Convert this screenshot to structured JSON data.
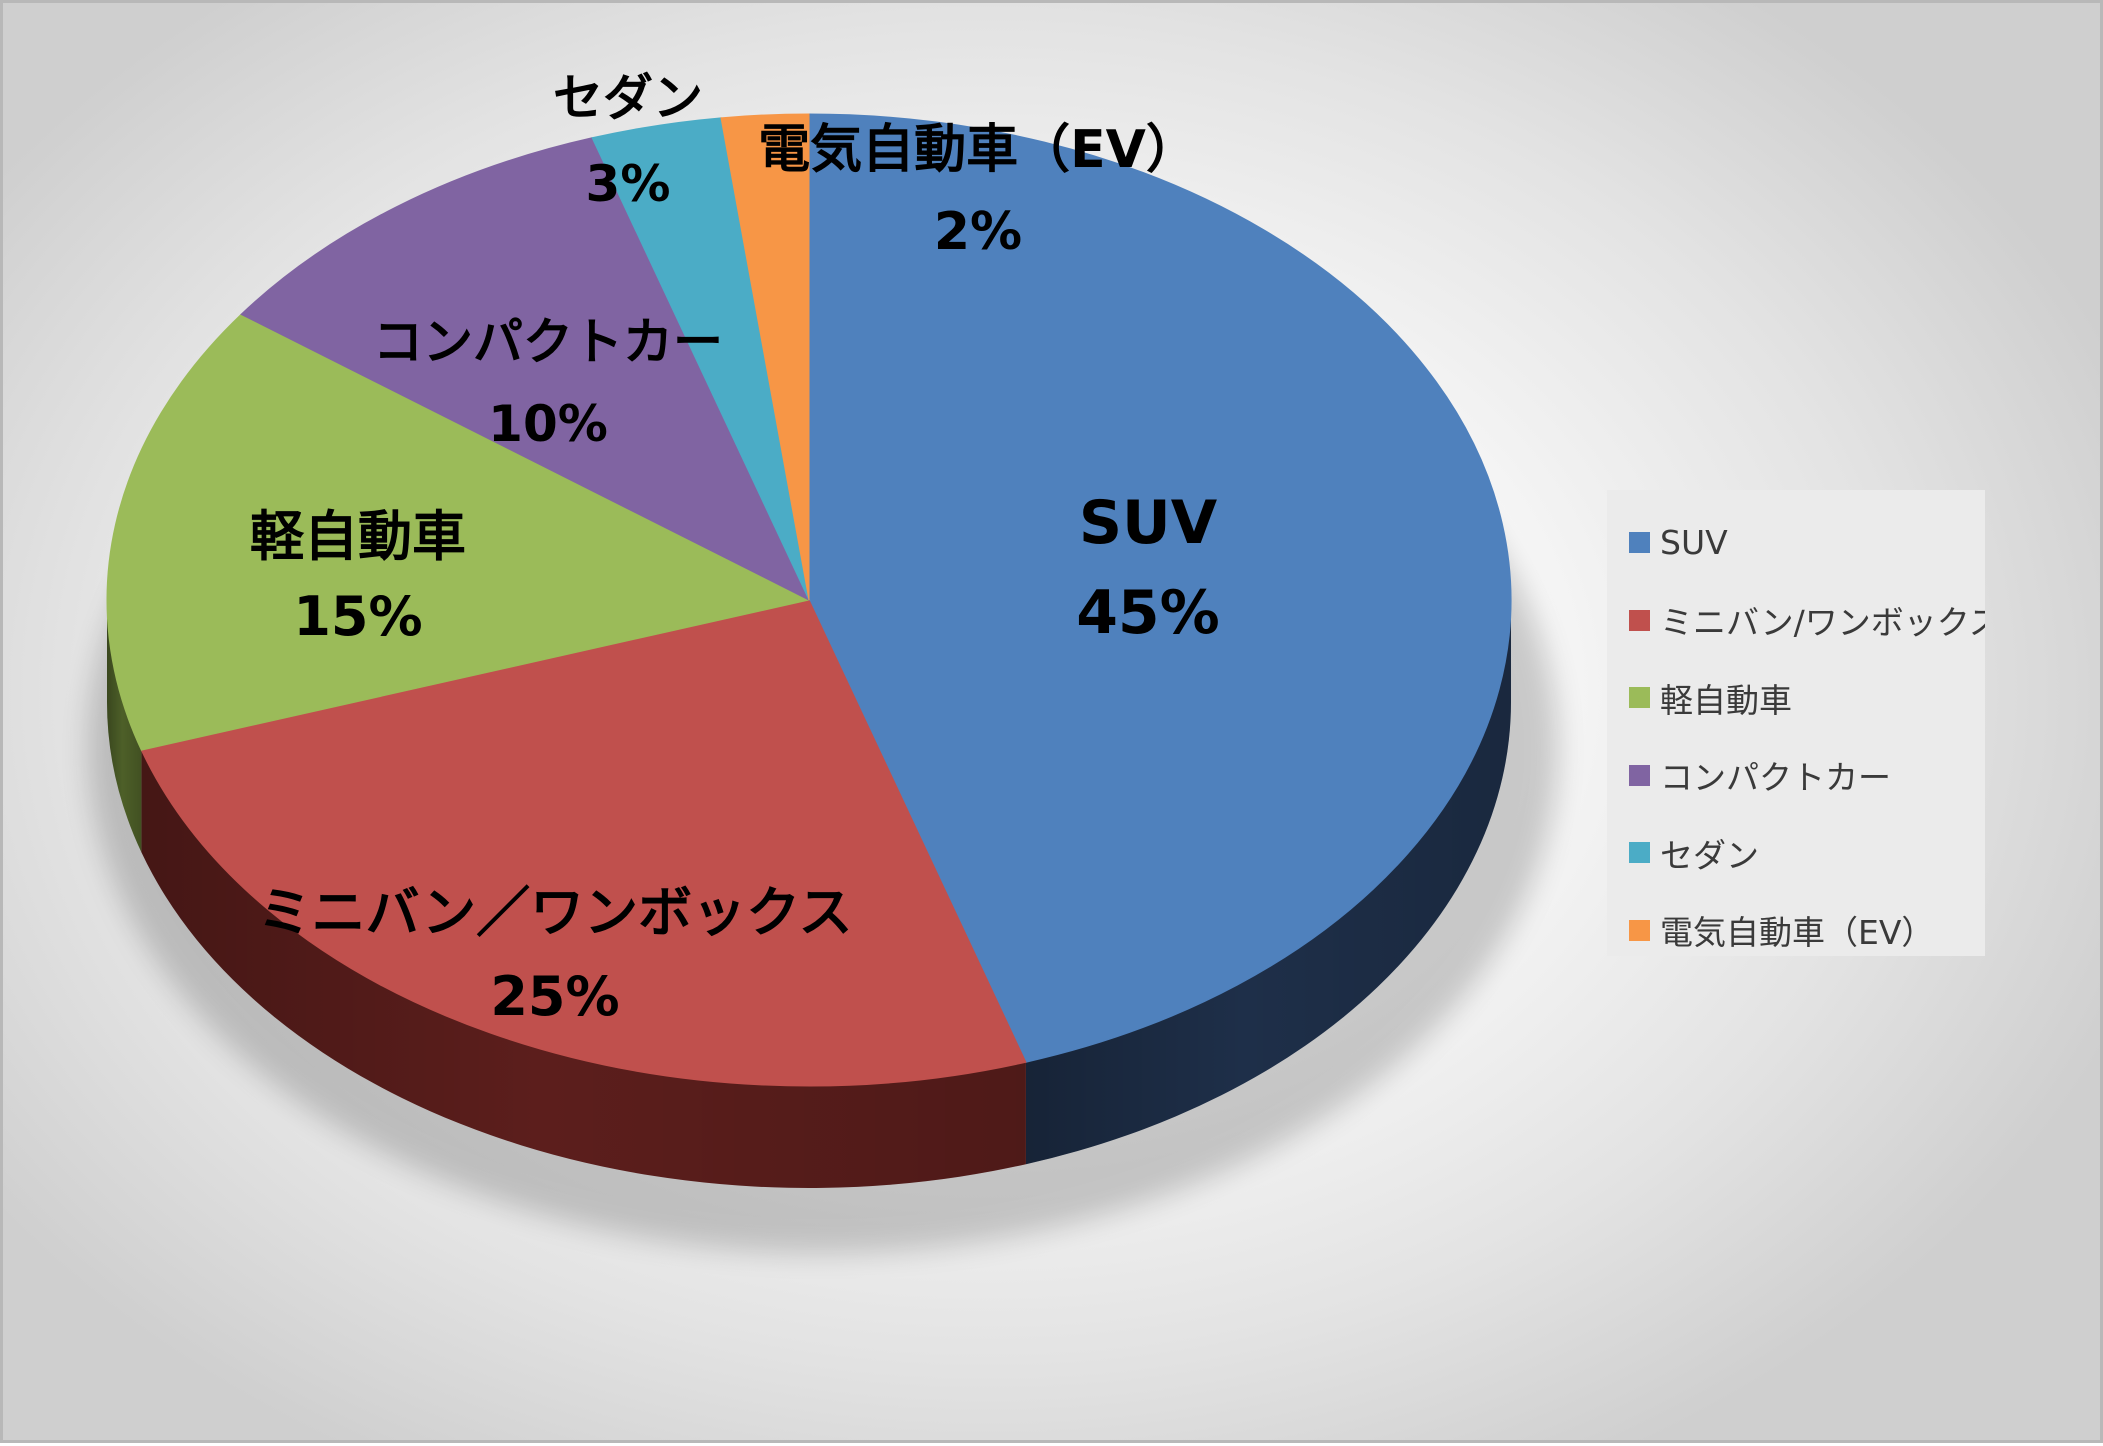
{
  "chart_data": {
    "type": "pie",
    "style": "3d",
    "slices": [
      {
        "label": "SUV",
        "legend_label": "SUV",
        "percent_label": "45%",
        "value": 45,
        "color": "#4F81BD",
        "side_color": "#1E2F49"
      },
      {
        "label": "ミニバン／ワンボックス",
        "legend_label": "ミニバン/ワンボックス:",
        "percent_label": "25%",
        "value": 25,
        "color": "#C0504D",
        "side_color": "#5C1E1C"
      },
      {
        "label": "軽自動車",
        "legend_label": "軽自動車",
        "percent_label": "15%",
        "value": 15,
        "color": "#9BBB59",
        "side_color": "#4D5F28"
      },
      {
        "label": "コンパクトカー",
        "legend_label": "コンパクトカー",
        "percent_label": "10%",
        "value": 10,
        "color": "#8064A2",
        "side_color": "#3E2D52"
      },
      {
        "label": "セダン",
        "legend_label": "セダン",
        "percent_label": "3%",
        "value": 3,
        "color": "#4BACC6",
        "side_color": "#1F5563"
      },
      {
        "label": "電気自動車（EV）",
        "legend_label": "電気自動車（EV）",
        "percent_label": "2%",
        "value": 2,
        "color": "#F79646",
        "side_color": "#7A4518"
      }
    ],
    "legend_position": "right"
  }
}
